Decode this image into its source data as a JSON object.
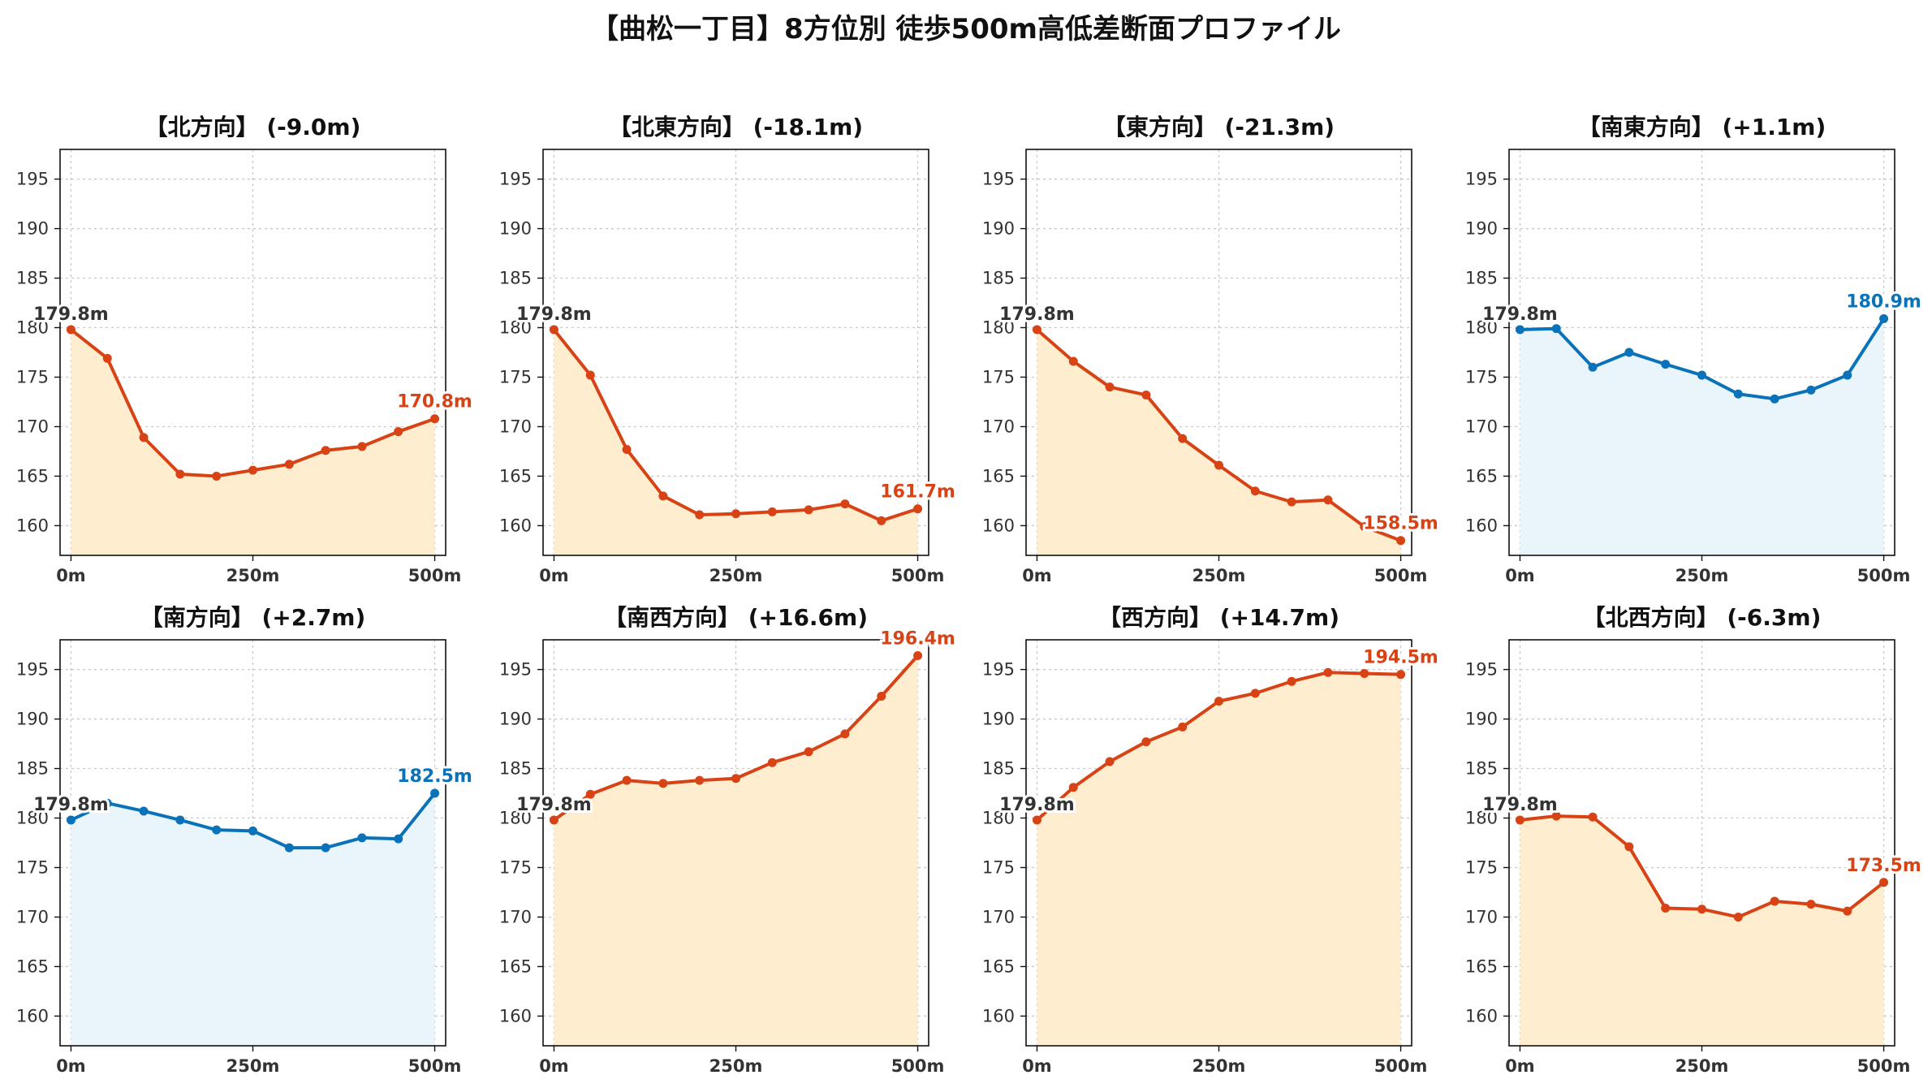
{
  "title": "【曲松一丁目】8方位別 徒歩500m高低差断面プロファイル",
  "colors": {
    "down_line": "#d84315",
    "down_fill": "#ffedd0",
    "up_line": "#0a72b8",
    "up_fill": "#e9f5fb",
    "start_label": "#333333"
  },
  "chart_data": [
    {
      "type": "area",
      "title": "【北方向】 (-9.0m)",
      "color_scheme": "down",
      "x": [
        0,
        50,
        100,
        150,
        200,
        250,
        300,
        350,
        400,
        450,
        500
      ],
      "y": [
        179.8,
        176.9,
        168.9,
        165.2,
        165.0,
        165.6,
        166.2,
        167.6,
        168.0,
        169.5,
        170.8
      ],
      "start_label": "179.8m",
      "end_label": "170.8m",
      "xticks": [
        "0m",
        "250m",
        "500m"
      ],
      "yticks": [
        160,
        165,
        170,
        175,
        180,
        185,
        190,
        195
      ],
      "ylim": [
        157,
        198
      ],
      "xlim": [
        -15,
        515
      ],
      "grid": true
    },
    {
      "type": "area",
      "title": "【北東方向】 (-18.1m)",
      "color_scheme": "down",
      "x": [
        0,
        50,
        100,
        150,
        200,
        250,
        300,
        350,
        400,
        450,
        500
      ],
      "y": [
        179.8,
        175.2,
        167.7,
        163.0,
        161.1,
        161.2,
        161.4,
        161.6,
        162.2,
        160.5,
        161.7
      ],
      "start_label": "179.8m",
      "end_label": "161.7m",
      "xticks": [
        "0m",
        "250m",
        "500m"
      ],
      "yticks": [
        160,
        165,
        170,
        175,
        180,
        185,
        190,
        195
      ],
      "ylim": [
        157,
        198
      ],
      "xlim": [
        -15,
        515
      ],
      "grid": true
    },
    {
      "type": "area",
      "title": "【東方向】 (-21.3m)",
      "color_scheme": "down",
      "x": [
        0,
        50,
        100,
        150,
        200,
        250,
        300,
        350,
        400,
        450,
        500
      ],
      "y": [
        179.8,
        176.6,
        174.0,
        173.2,
        168.8,
        166.1,
        163.5,
        162.4,
        162.6,
        159.9,
        158.5
      ],
      "start_label": "179.8m",
      "end_label": "158.5m",
      "xticks": [
        "0m",
        "250m",
        "500m"
      ],
      "yticks": [
        160,
        165,
        170,
        175,
        180,
        185,
        190,
        195
      ],
      "ylim": [
        157,
        198
      ],
      "xlim": [
        -15,
        515
      ],
      "grid": true
    },
    {
      "type": "area",
      "title": "【南東方向】 (+1.1m)",
      "color_scheme": "up",
      "x": [
        0,
        50,
        100,
        150,
        200,
        250,
        300,
        350,
        400,
        450,
        500
      ],
      "y": [
        179.8,
        179.9,
        176.0,
        177.5,
        176.3,
        175.2,
        173.3,
        172.8,
        173.7,
        175.2,
        180.9
      ],
      "start_label": "179.8m",
      "end_label": "180.9m",
      "xticks": [
        "0m",
        "250m",
        "500m"
      ],
      "yticks": [
        160,
        165,
        170,
        175,
        180,
        185,
        190,
        195
      ],
      "ylim": [
        157,
        198
      ],
      "xlim": [
        -15,
        515
      ],
      "grid": true
    },
    {
      "type": "area",
      "title": "【南方向】 (+2.7m)",
      "color_scheme": "up",
      "x": [
        0,
        50,
        100,
        150,
        200,
        250,
        300,
        350,
        400,
        450,
        500
      ],
      "y": [
        179.8,
        181.5,
        180.7,
        179.8,
        178.8,
        178.7,
        177.0,
        177.0,
        178.0,
        177.9,
        182.5
      ],
      "start_label": "179.8m",
      "end_label": "182.5m",
      "xticks": [
        "0m",
        "250m",
        "500m"
      ],
      "yticks": [
        160,
        165,
        170,
        175,
        180,
        185,
        190,
        195
      ],
      "ylim": [
        157,
        198
      ],
      "xlim": [
        -15,
        515
      ],
      "grid": true
    },
    {
      "type": "area",
      "title": "【南西方向】 (+16.6m)",
      "color_scheme": "down",
      "x": [
        0,
        50,
        100,
        150,
        200,
        250,
        300,
        350,
        400,
        450,
        500
      ],
      "y": [
        179.8,
        182.4,
        183.8,
        183.5,
        183.8,
        184.0,
        185.6,
        186.7,
        188.5,
        192.3,
        196.4
      ],
      "start_label": "179.8m",
      "end_label": "196.4m",
      "xticks": [
        "0m",
        "250m",
        "500m"
      ],
      "yticks": [
        160,
        165,
        170,
        175,
        180,
        185,
        190,
        195
      ],
      "ylim": [
        157,
        198
      ],
      "xlim": [
        -15,
        515
      ],
      "grid": true
    },
    {
      "type": "area",
      "title": "【西方向】 (+14.7m)",
      "color_scheme": "down",
      "x": [
        0,
        50,
        100,
        150,
        200,
        250,
        300,
        350,
        400,
        450,
        500
      ],
      "y": [
        179.8,
        183.1,
        185.7,
        187.7,
        189.2,
        191.8,
        192.6,
        193.8,
        194.7,
        194.6,
        194.5
      ],
      "start_label": "179.8m",
      "end_label": "194.5m",
      "xticks": [
        "0m",
        "250m",
        "500m"
      ],
      "yticks": [
        160,
        165,
        170,
        175,
        180,
        185,
        190,
        195
      ],
      "ylim": [
        157,
        198
      ],
      "xlim": [
        -15,
        515
      ],
      "grid": true
    },
    {
      "type": "area",
      "title": "【北西方向】 (-6.3m)",
      "color_scheme": "down",
      "x": [
        0,
        50,
        100,
        150,
        200,
        250,
        300,
        350,
        400,
        450,
        500
      ],
      "y": [
        179.8,
        180.2,
        180.1,
        177.1,
        170.9,
        170.8,
        170.0,
        171.6,
        171.3,
        170.6,
        173.5
      ],
      "start_label": "179.8m",
      "end_label": "173.5m",
      "xticks": [
        "0m",
        "250m",
        "500m"
      ],
      "yticks": [
        160,
        165,
        170,
        175,
        180,
        185,
        190,
        195
      ],
      "ylim": [
        157,
        198
      ],
      "xlim": [
        -15,
        515
      ],
      "grid": true
    }
  ]
}
